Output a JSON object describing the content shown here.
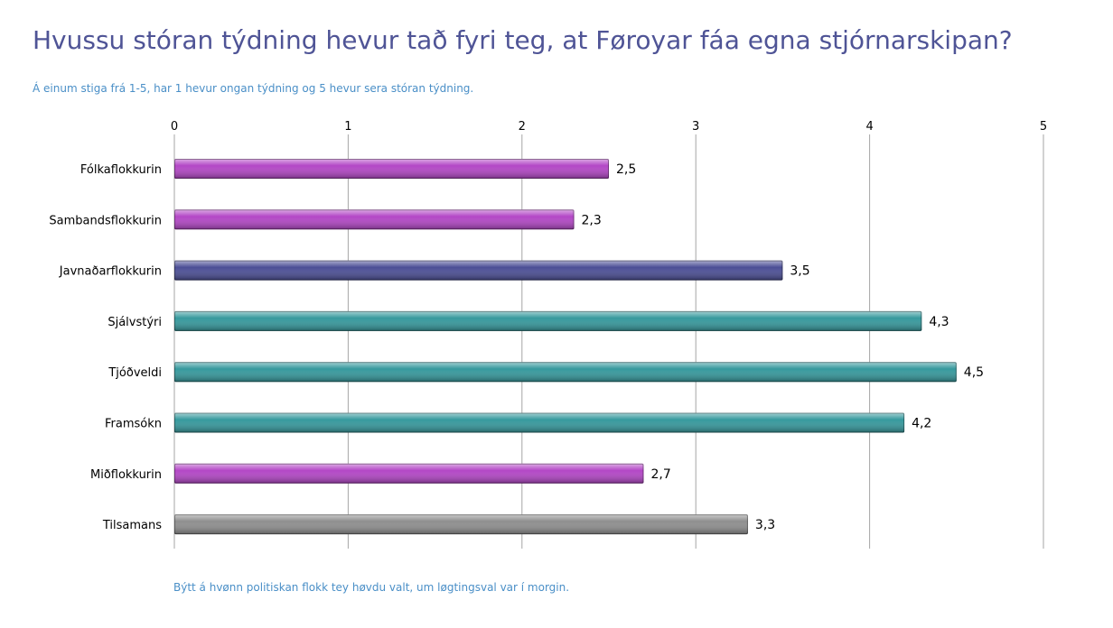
{
  "title": "Hvussu stóran týdning hevur tað fyri teg, at Føroyar fáa egna stjórnarskipan?",
  "subtitle": "Á einum stiga frá 1-5, har 1 hevur ongan týdning og 5 hevur sera stóran týdning.",
  "footnote": "Býtt á hvønn politiskan flokk tey høvdu valt, um løgtingsval var í morgin.",
  "colors": {
    "magenta": "#b347c6",
    "navy": "#4c4f96",
    "teal": "#36999d",
    "gray": "#8f8f8f"
  },
  "chart_data": {
    "type": "bar",
    "orientation": "horizontal",
    "xlim": [
      0,
      5
    ],
    "xticks": [
      "0",
      "1",
      "2",
      "3",
      "4",
      "5"
    ],
    "grid": true,
    "categories": [
      "Fólkaflokkurin",
      "Sambandsflokkurin",
      "Javnaðarflokkurin",
      "Sjálvstýri",
      "Tjóðveldi",
      "Framsókn",
      "Miðflokkurin",
      "Tilsamans"
    ],
    "values": [
      2.5,
      2.3,
      3.5,
      4.3,
      4.5,
      4.2,
      2.7,
      3.3
    ],
    "value_labels": [
      "2,5",
      "2,3",
      "3,5",
      "4,3",
      "4,5",
      "4,2",
      "2,7",
      "3,3"
    ],
    "bar_colors": [
      "magenta",
      "magenta",
      "navy",
      "teal",
      "teal",
      "teal",
      "magenta",
      "gray"
    ]
  }
}
